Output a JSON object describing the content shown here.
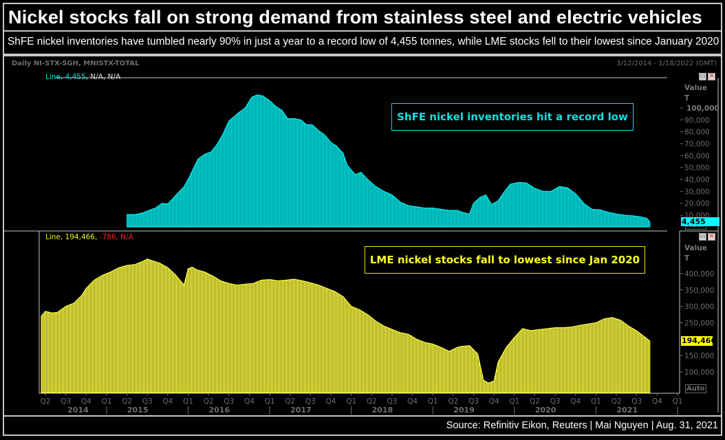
{
  "header": {
    "title": "Nickel stocks fall on strong demand from stainless steel and electric vehicles",
    "subtitle": "ShFE nickel inventories have tumbled nearly 90% in just a year to a record low of 4,455 tonnes, while LME stocks fell to their lowest since January 2020"
  },
  "chart_header": {
    "series_codes": "Daily NI-STX-SGH, MNISTX-TOTAL",
    "date_range": "3/12/2014 - 1/18/2022 (GMT)"
  },
  "footer": {
    "source": "Source: Refinitiv Eikon, Reuters | Mai Nguyen | Aug. 31, 2021"
  },
  "controls": {
    "restore_icon": "restore-window-icon",
    "close_icon": "close-window-icon",
    "auto_label": "Auto"
  },
  "colors": {
    "shfe": "#00f0f0",
    "lme": "#ffff40",
    "negative": "#ff2020",
    "axis_text": "#6e6e6e",
    "frame": "#c8c8c8"
  },
  "chart_data": [
    {
      "type": "area",
      "name": "ShFE nickel inventories",
      "legend": {
        "prefix": "Line, ",
        "value": "4,455",
        "suffix": ", N/A, N/A"
      },
      "annotation": "ShFE nickel inventories hit a record low",
      "ylabel": "Value",
      "yunit": "T",
      "yticks": [
        "100,000",
        "90,000",
        "80,000",
        "70,000",
        "60,000",
        "50,000",
        "40,000",
        "30,000",
        "20,000",
        "10,000"
      ],
      "ytick_values": [
        100000,
        90000,
        80000,
        70000,
        60000,
        50000,
        40000,
        30000,
        20000,
        10000
      ],
      "ylim": [
        0,
        110000
      ],
      "last_value": "4,455",
      "x": [
        2015.25,
        2015.35,
        2015.45,
        2015.5,
        2015.6,
        2015.68,
        2015.75,
        2015.8,
        2015.88,
        2015.95,
        2016.0,
        2016.05,
        2016.12,
        2016.2,
        2016.28,
        2016.35,
        2016.42,
        2016.5,
        2016.55,
        2016.62,
        2016.7,
        2016.78,
        2016.85,
        2016.92,
        2017.0,
        2017.08,
        2017.15,
        2017.22,
        2017.3,
        2017.38,
        2017.45,
        2017.52,
        2017.6,
        2017.68,
        2017.75,
        2017.82,
        2017.9,
        2017.95,
        2018.0,
        2018.05,
        2018.12,
        2018.2,
        2018.3,
        2018.4,
        2018.5,
        2018.6,
        2018.7,
        2018.8,
        2018.9,
        2019.0,
        2019.1,
        2019.2,
        2019.3,
        2019.38,
        2019.45,
        2019.5,
        2019.58,
        2019.65,
        2019.72,
        2019.8,
        2019.88,
        2019.95,
        2020.05,
        2020.15,
        2020.25,
        2020.35,
        2020.45,
        2020.55,
        2020.65,
        2020.75,
        2020.85,
        2020.95,
        2021.05,
        2021.15,
        2021.25,
        2021.35,
        2021.45,
        2021.55,
        2021.62,
        2021.66
      ],
      "values": [
        10500,
        10500,
        12000,
        13500,
        16000,
        20000,
        19500,
        23000,
        29000,
        34000,
        40000,
        47000,
        57000,
        61000,
        63000,
        69000,
        77000,
        89000,
        92000,
        96000,
        100000,
        109000,
        111000,
        110000,
        106000,
        101000,
        98000,
        91000,
        91000,
        90000,
        86000,
        86000,
        81000,
        77000,
        71000,
        68000,
        62000,
        52000,
        48000,
        44000,
        46000,
        40000,
        34000,
        30000,
        27000,
        21000,
        18000,
        17000,
        16000,
        16000,
        15000,
        14000,
        14000,
        12000,
        11000,
        20000,
        25000,
        27000,
        19000,
        22000,
        30000,
        36000,
        37500,
        37000,
        32500,
        30000,
        30000,
        34000,
        33000,
        28000,
        20000,
        15000,
        14500,
        12500,
        11000,
        10000,
        9500,
        8500,
        7500,
        4455
      ]
    },
    {
      "type": "area",
      "name": "LME nickel stocks",
      "legend": {
        "prefix": "Line, ",
        "value": "194,466",
        "change": "-786",
        "suffix": ", N/A"
      },
      "annotation": "LME nickel stocks fall to lowest since Jan 2020",
      "ylabel": "Value",
      "yunit": "T",
      "yticks": [
        "400,000",
        "350,000",
        "300,000",
        "250,000",
        "150,000",
        "100,000"
      ],
      "ytick_values": [
        400000,
        350000,
        300000,
        250000,
        150000,
        100000
      ],
      "ylim": [
        62000,
        450000
      ],
      "last_value": "194,466",
      "x": [
        2014.2,
        2014.25,
        2014.33,
        2014.4,
        2014.5,
        2014.6,
        2014.7,
        2014.75,
        2014.85,
        2014.95,
        2015.05,
        2015.15,
        2015.25,
        2015.35,
        2015.45,
        2015.5,
        2015.55,
        2015.65,
        2015.75,
        2015.85,
        2015.95,
        2016.0,
        2016.05,
        2016.1,
        2016.2,
        2016.3,
        2016.4,
        2016.5,
        2016.6,
        2016.7,
        2016.8,
        2016.9,
        2017.0,
        2017.1,
        2017.2,
        2017.3,
        2017.4,
        2017.5,
        2017.6,
        2017.7,
        2017.8,
        2017.9,
        2018.0,
        2018.1,
        2018.2,
        2018.3,
        2018.4,
        2018.5,
        2018.6,
        2018.7,
        2018.8,
        2018.9,
        2019.0,
        2019.1,
        2019.2,
        2019.3,
        2019.35,
        2019.45,
        2019.55,
        2019.62,
        2019.68,
        2019.75,
        2019.8,
        2019.9,
        2020.0,
        2020.1,
        2020.2,
        2020.3,
        2020.4,
        2020.5,
        2020.6,
        2020.7,
        2020.8,
        2020.9,
        2021.0,
        2021.1,
        2021.2,
        2021.3,
        2021.4,
        2021.5,
        2021.6,
        2021.66
      ],
      "values": [
        270000,
        285000,
        280000,
        282000,
        300000,
        310000,
        335000,
        355000,
        380000,
        395000,
        405000,
        418000,
        425000,
        428000,
        438000,
        445000,
        440000,
        432000,
        418000,
        395000,
        365000,
        415000,
        420000,
        412000,
        405000,
        393000,
        378000,
        370000,
        365000,
        368000,
        370000,
        380000,
        382000,
        378000,
        380000,
        383000,
        378000,
        372000,
        365000,
        355000,
        345000,
        330000,
        300000,
        290000,
        275000,
        255000,
        240000,
        230000,
        220000,
        215000,
        200000,
        190000,
        185000,
        175000,
        163000,
        175000,
        178000,
        180000,
        155000,
        75000,
        66000,
        72000,
        130000,
        175000,
        205000,
        232000,
        226000,
        229000,
        232000,
        235000,
        235000,
        237000,
        242000,
        246000,
        250000,
        262000,
        266000,
        258000,
        240000,
        225000,
        206000,
        194466
      ]
    }
  ],
  "x_axis": {
    "quarters": [
      "Q2",
      "Q3",
      "Q4",
      "Q1",
      "Q2",
      "Q3",
      "Q4",
      "Q1",
      "Q2",
      "Q3",
      "Q4",
      "Q1",
      "Q2",
      "Q3",
      "Q4",
      "Q1",
      "Q2",
      "Q3",
      "Q4",
      "Q1",
      "Q2",
      "Q3",
      "Q4",
      "Q1",
      "Q2",
      "Q3",
      "Q4",
      "Q1",
      "Q2",
      "Q3",
      "Q4",
      "Q1"
    ],
    "years": [
      "2014",
      "2015",
      "2016",
      "2017",
      "2018",
      "2019",
      "2020",
      "2021"
    ]
  }
}
